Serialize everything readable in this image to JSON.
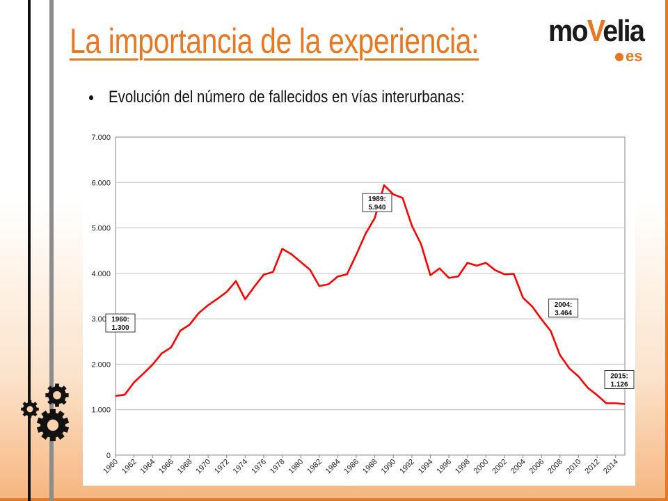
{
  "slide": {
    "title": "La importancia de la experiencia:",
    "bullet": "Evolución del número de fallecidos en vías interurbanas:"
  },
  "logo": {
    "main_pre": "mo",
    "main_v": "V",
    "main_post": "elia",
    "sub": "es"
  },
  "icons": {
    "decoration": "gears-icon"
  },
  "colors": {
    "accent": "#e87722",
    "line": "#ff0000",
    "grid": "#bfbfbf"
  },
  "chart_data": {
    "type": "line",
    "title": "",
    "xlabel": "",
    "ylabel": "",
    "x_range": [
      1960,
      2015
    ],
    "ylim": [
      0,
      7000
    ],
    "grid": true,
    "yticks": [
      "0",
      "1.000",
      "2.000",
      "3.000",
      "4.000",
      "5.000",
      "6.000",
      "7.000"
    ],
    "xtick_labels": [
      "1960",
      "1962",
      "1964",
      "1966",
      "1968",
      "1970",
      "1972",
      "1974",
      "1976",
      "1978",
      "1980",
      "1982",
      "1984",
      "1986",
      "1988",
      "1990",
      "1992",
      "1994",
      "1996",
      "1998",
      "2000",
      "2002",
      "2004",
      "2006",
      "2008",
      "2010",
      "2012",
      "2014"
    ],
    "series": [
      {
        "x": [
          1960,
          1961,
          1962,
          1963,
          1964,
          1965,
          1966,
          1967,
          1968,
          1969,
          1970,
          1971,
          1972,
          1973,
          1974,
          1975,
          1976,
          1977,
          1978,
          1979,
          1980,
          1981,
          1982,
          1983,
          1984,
          1985,
          1986,
          1987,
          1988,
          1989,
          1990,
          1991,
          1992,
          1993,
          1994,
          1995,
          1996,
          1997,
          1998,
          1999,
          2000,
          2001,
          2002,
          2003,
          2004,
          2005,
          2006,
          2007,
          2008,
          2009,
          2010,
          2011,
          2012,
          2013,
          2014,
          2015
        ],
        "values": [
          1300,
          1330,
          1600,
          1790,
          1990,
          2240,
          2370,
          2740,
          2870,
          3130,
          3300,
          3440,
          3590,
          3830,
          3430,
          3710,
          3970,
          4030,
          4540,
          4420,
          4250,
          4080,
          3720,
          3760,
          3930,
          3980,
          4410,
          4870,
          5220,
          5940,
          5740,
          5660,
          5050,
          4640,
          3960,
          4110,
          3900,
          3930,
          4230,
          4170,
          4230,
          4070,
          3980,
          3990,
          3464,
          3270,
          2990,
          2730,
          2200,
          1910,
          1730,
          1480,
          1320,
          1140,
          1140,
          1126
        ]
      }
    ],
    "annotations": [
      {
        "x": 1960,
        "y": 1300,
        "line1": "1960:",
        "line2": "1.300"
      },
      {
        "x": 1989,
        "y": 5940,
        "line1": "1989:",
        "line2": "5.940"
      },
      {
        "x": 2004,
        "y": 3464,
        "line1": "2004:",
        "line2": "3.464"
      },
      {
        "x": 2015,
        "y": 1126,
        "line1": "2015:",
        "line2": "1.126"
      }
    ]
  }
}
